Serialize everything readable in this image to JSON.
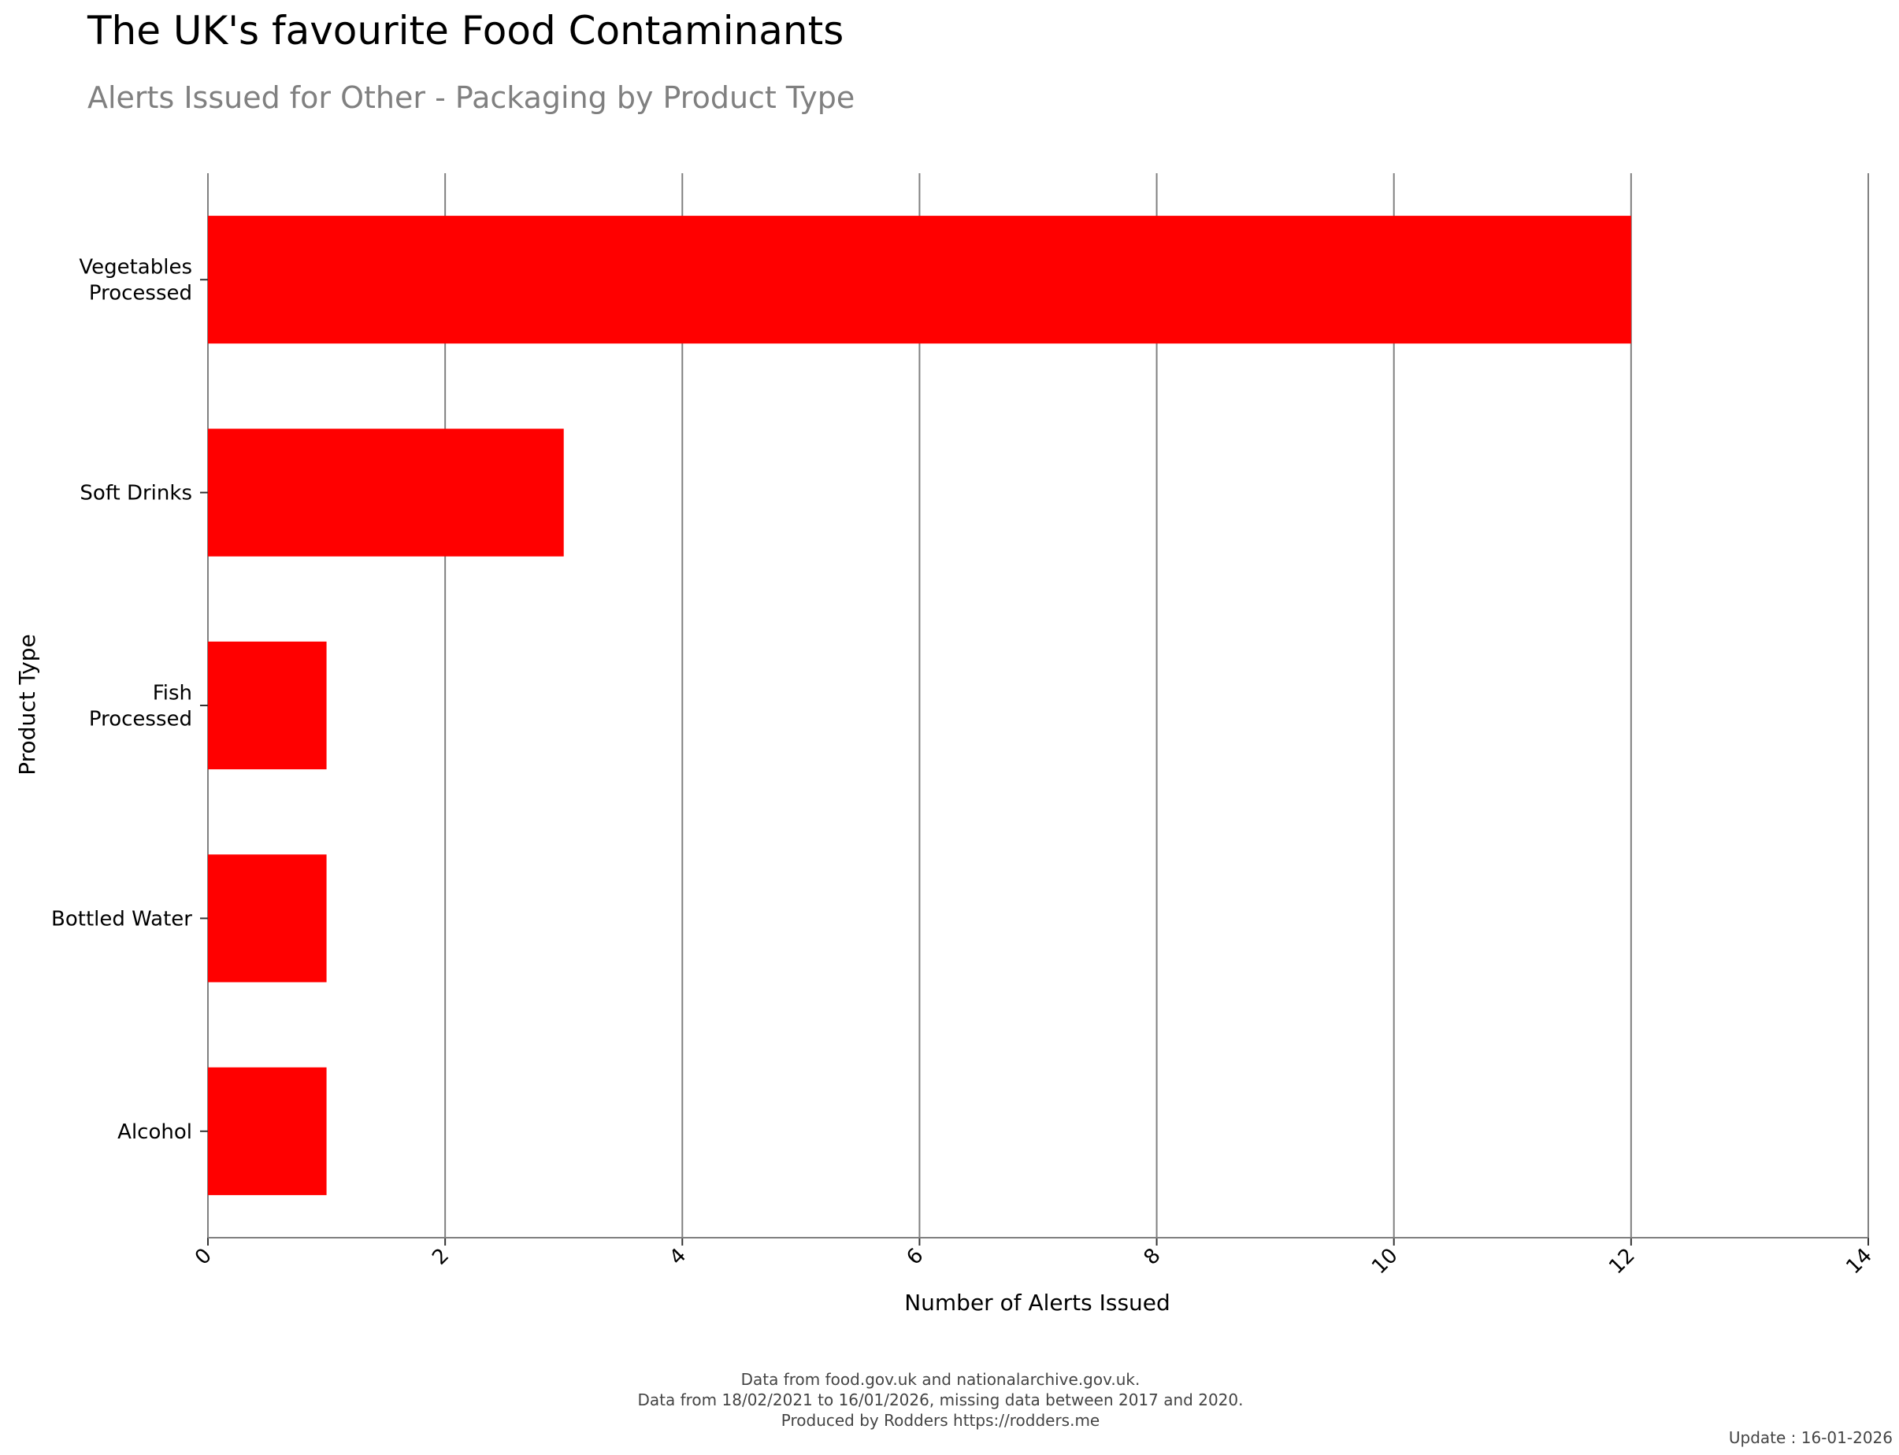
{
  "chart_data": {
    "type": "bar",
    "orientation": "horizontal",
    "title": "The UK's favourite Food Contaminants",
    "subtitle": "Alerts Issued for Other - Packaging by Product Type",
    "xlabel": "Number of Alerts Issued",
    "ylabel": "Product Type",
    "categories": [
      [
        "Vegetables",
        "Processed"
      ],
      [
        "Soft Drinks"
      ],
      [
        "Fish",
        "Processed"
      ],
      [
        "Bottled Water"
      ],
      [
        "Alcohol"
      ]
    ],
    "values": [
      12,
      3,
      1,
      1,
      1
    ],
    "xlim": [
      0,
      14
    ],
    "xticks": [
      "0",
      "2",
      "4",
      "6",
      "8",
      "10",
      "12",
      "14"
    ],
    "grid": "vertical",
    "bar_color": "#ff0000",
    "grid_color": "#808080",
    "caption": [
      "Data from food.gov.uk and nationalarchive.gov.uk.",
      "Data from 18/02/2021 to 16/01/2026, missing data between 2017 and 2020.",
      "Produced by Rodders https://rodders.me"
    ],
    "update_note": "Update : 16-01-2026"
  }
}
